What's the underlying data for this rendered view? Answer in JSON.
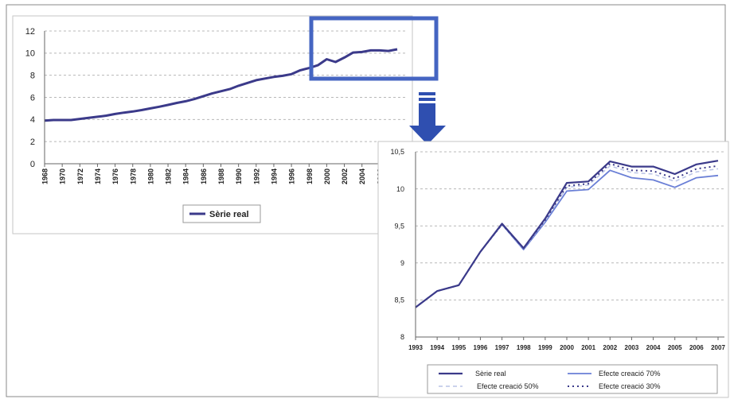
{
  "chart_data": [
    {
      "type": "line",
      "title": "",
      "xlabel": "",
      "ylabel": "",
      "ylim": [
        0,
        12
      ],
      "yticks": [
        "0",
        "2",
        "4",
        "6",
        "8",
        "10",
        "12"
      ],
      "xticks": [
        "1968",
        "1970",
        "1972",
        "1974",
        "1976",
        "1978",
        "1980",
        "1982",
        "1984",
        "1986",
        "1988",
        "1990",
        "1992",
        "1994",
        "1996",
        "1998",
        "2000",
        "2002",
        "2004",
        "2006"
      ],
      "grid": true,
      "legend_position": "bottom",
      "x": [
        1968,
        1969,
        1970,
        1971,
        1972,
        1973,
        1974,
        1975,
        1976,
        1977,
        1978,
        1979,
        1980,
        1981,
        1982,
        1983,
        1984,
        1985,
        1986,
        1987,
        1988,
        1989,
        1990,
        1991,
        1992,
        1993,
        1994,
        1995,
        1996,
        1997,
        1998,
        1999,
        2000,
        2001,
        2002,
        2003,
        2004,
        2005,
        2006,
        2007,
        2008
      ],
      "series": [
        {
          "name": "Sèrie real",
          "color": "#3b3a8a",
          "values": [
            3.9,
            3.95,
            3.95,
            3.95,
            4.05,
            4.15,
            4.25,
            4.35,
            4.5,
            4.62,
            4.72,
            4.85,
            5.0,
            5.15,
            5.32,
            5.5,
            5.65,
            5.85,
            6.1,
            6.35,
            6.55,
            6.75,
            7.05,
            7.3,
            7.55,
            7.7,
            7.85,
            7.95,
            8.1,
            8.45,
            8.65,
            8.9,
            9.45,
            9.2,
            9.6,
            10.05,
            10.1,
            10.25,
            10.25,
            10.2,
            10.35
          ]
        }
      ]
    },
    {
      "type": "line",
      "title": "",
      "xlabel": "",
      "ylabel": "",
      "ylim": [
        8,
        10.5
      ],
      "yticks": [
        "8",
        "8,5",
        "9",
        "9,5",
        "10",
        "10,5"
      ],
      "xticks": [
        "1993",
        "1994",
        "1995",
        "1996",
        "1997",
        "1998",
        "1999",
        "2000",
        "2001",
        "2002",
        "2003",
        "2004",
        "2005",
        "2006",
        "2007"
      ],
      "grid": true,
      "legend_position": "bottom",
      "x": [
        1993,
        1994,
        1995,
        1996,
        1997,
        1998,
        1999,
        2000,
        2001,
        2002,
        2003,
        2004,
        2005,
        2006,
        2007
      ],
      "series": [
        {
          "name": "Sèrie real",
          "color": "#3b3a8a",
          "style": "solid",
          "values": [
            8.4,
            8.62,
            8.7,
            9.15,
            9.53,
            9.2,
            9.6,
            10.08,
            10.1,
            10.37,
            10.3,
            10.3,
            10.2,
            10.33,
            10.38
          ]
        },
        {
          "name": "Efecte creació 70%",
          "color": "#6a7fd6",
          "style": "solid",
          "values": [
            8.4,
            8.62,
            8.7,
            9.15,
            9.52,
            9.18,
            9.55,
            9.97,
            9.99,
            10.25,
            10.15,
            10.12,
            10.02,
            10.15,
            10.18
          ]
        },
        {
          "name": "Efecte creació 50%",
          "color": "#b9c3e6",
          "style": "dashed",
          "values": [
            8.4,
            8.62,
            8.7,
            9.15,
            9.52,
            9.19,
            9.57,
            10.02,
            10.05,
            10.31,
            10.22,
            10.2,
            10.1,
            10.23,
            10.27
          ]
        },
        {
          "name": "Efecte creació 30%",
          "color": "#3b3a8a",
          "style": "dotted",
          "values": [
            8.4,
            8.62,
            8.7,
            9.15,
            9.52,
            9.2,
            9.58,
            10.04,
            10.07,
            10.34,
            10.25,
            10.24,
            10.14,
            10.27,
            10.31
          ]
        }
      ]
    }
  ],
  "colors": {
    "highlight_box": "#4565c2",
    "arrow": "#2f4fb0",
    "grid": "#b8b8b8",
    "frame": "#c6c6c6"
  }
}
